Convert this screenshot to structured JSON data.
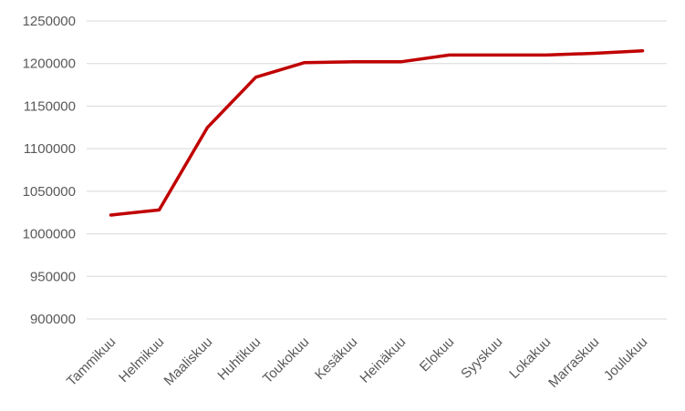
{
  "chart_data": {
    "type": "line",
    "title": "",
    "xlabel": "",
    "ylabel": "",
    "categories": [
      "Tammikuu",
      "Helmikuu",
      "Maaliskuu",
      "Huhtikuu",
      "Toukokuu",
      "Kesäkuu",
      "Heinäkuu",
      "Elokuu",
      "Syyskuu",
      "Lokakuu",
      "Marraskuu",
      "Joulukuu"
    ],
    "series": [
      {
        "values": [
          1022000,
          1028000,
          1125000,
          1184000,
          1201000,
          1202000,
          1202000,
          1210000,
          1210000,
          1210000,
          1212000,
          1215000
        ],
        "color": "#c00000"
      }
    ],
    "ylim": [
      900000,
      1250000
    ],
    "yticks": [
      900000,
      950000,
      1000000,
      1050000,
      1100000,
      1150000,
      1200000,
      1250000
    ],
    "ytick_labels": [
      "900000",
      "950000",
      "1000000",
      "1050000",
      "1100000",
      "1150000",
      "1200000",
      "1250000"
    ],
    "grid": true,
    "legend": "none"
  }
}
